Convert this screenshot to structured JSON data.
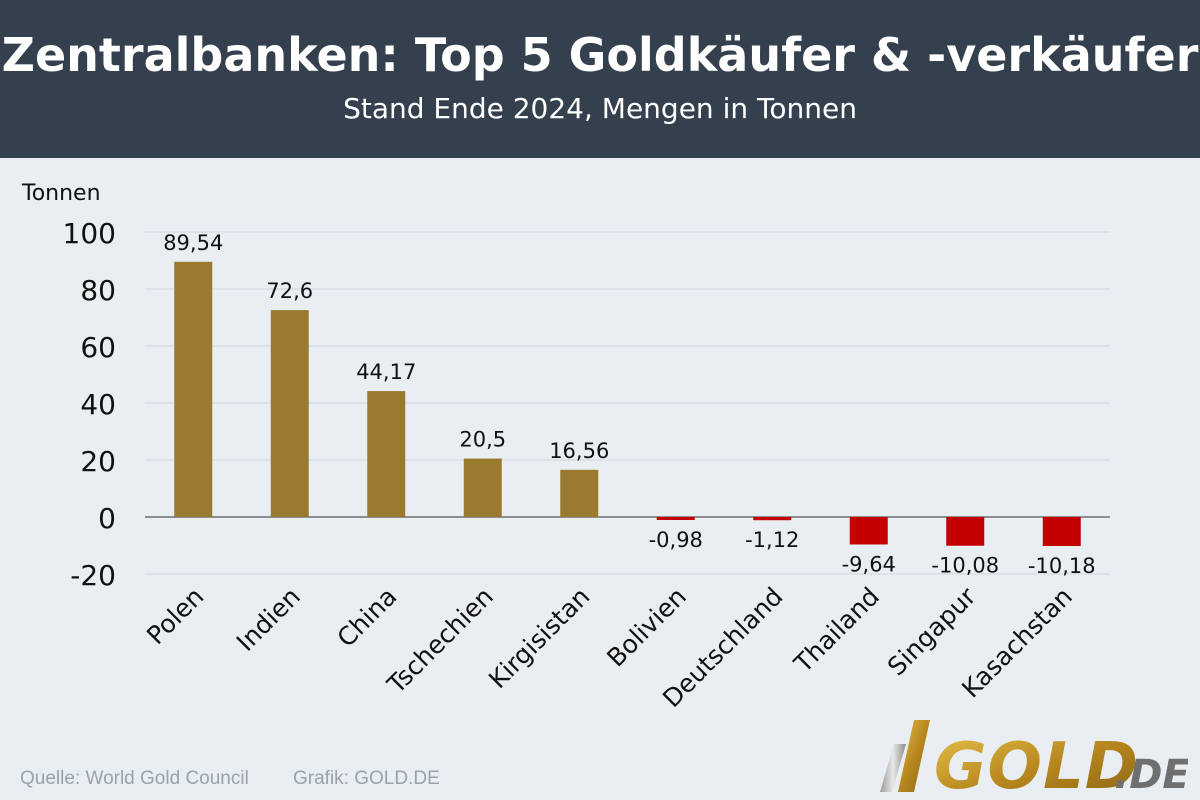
{
  "header": {
    "title": "Zentralbanken: Top 5 Goldkäufer & -verkäufer",
    "subtitle": "Stand Ende 2024, Mengen in Tonnen"
  },
  "footer": {
    "source": "Quelle: World Gold Council",
    "credit": "Grafik: GOLD.DE"
  },
  "logo": {
    "text_main": "GOLD",
    "text_tld": ".DE"
  },
  "chart_data": {
    "type": "bar",
    "ylabel": "Tonnen",
    "ylim": [
      -20,
      100
    ],
    "yticks": [
      100,
      80,
      60,
      40,
      20,
      0,
      -20
    ],
    "grid": true,
    "categories": [
      "Polen",
      "Indien",
      "China",
      "Tschechien",
      "Kirgisistan",
      "Bolivien",
      "Deutschland",
      "Thailand",
      "Singapur",
      "Kasachstan"
    ],
    "values": [
      89.54,
      72.6,
      44.17,
      20.5,
      16.56,
      -0.98,
      -1.12,
      -9.64,
      -10.08,
      -10.18
    ],
    "value_labels": [
      "89,54",
      "72,6",
      "44,17",
      "20,5",
      "16,56",
      "-0,98",
      "-1,12",
      "-9,64",
      "-10,08",
      "-10,18"
    ],
    "colors": {
      "positive": "#9a7a2f",
      "negative": "#c40000"
    }
  }
}
